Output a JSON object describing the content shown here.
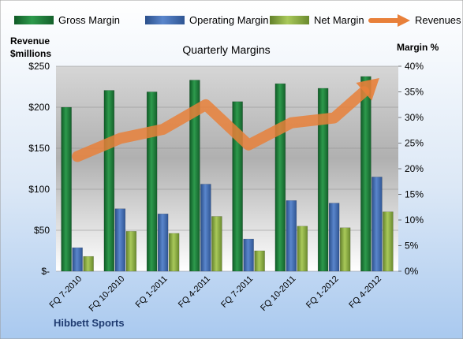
{
  "chart_data": {
    "type": "bar",
    "title": "Quarterly Margins",
    "footer": "Hibbett Sports",
    "left_axis": {
      "label_line1": "Revenue",
      "label_line2": "$millions",
      "range": [
        0,
        250
      ],
      "ticks": [
        "$-",
        "$50",
        "$100",
        "$150",
        "$200",
        "$250"
      ]
    },
    "right_axis": {
      "label": "Margin %",
      "range": [
        0,
        40
      ],
      "ticks": [
        "0%",
        "5%",
        "10%",
        "15%",
        "20%",
        "25%",
        "30%",
        "35%",
        "40%"
      ]
    },
    "categories": [
      "FQ 7-2010",
      "FQ 10-2010",
      "FQ 1-2011",
      "FQ 4-2011",
      "FQ 7-2011",
      "FQ 10-2011",
      "FQ 1-2012",
      "FQ 4-2012"
    ],
    "series": [
      {
        "name": "Gross Margin",
        "axis": "right",
        "kind": "bar",
        "color": "#1e7b3c",
        "values": [
          32.0,
          35.3,
          35.0,
          37.3,
          33.1,
          36.6,
          35.7,
          38.0
        ]
      },
      {
        "name": "Operating Margin",
        "axis": "right",
        "kind": "bar",
        "color": "#3f6cb4",
        "values": [
          4.6,
          12.2,
          11.2,
          17.0,
          6.3,
          13.8,
          13.3,
          18.4
        ]
      },
      {
        "name": "Net Margin",
        "axis": "right",
        "kind": "bar",
        "color": "#86a83a",
        "values": [
          2.9,
          7.8,
          7.4,
          10.7,
          4.0,
          8.8,
          8.5,
          11.6
        ]
      },
      {
        "name": "Revenues",
        "axis": "left",
        "kind": "line",
        "color": "#e8803a",
        "values": [
          140,
          162,
          173,
          203,
          154,
          181,
          187,
          233
        ]
      }
    ],
    "legend_position": "top",
    "grid": true
  }
}
